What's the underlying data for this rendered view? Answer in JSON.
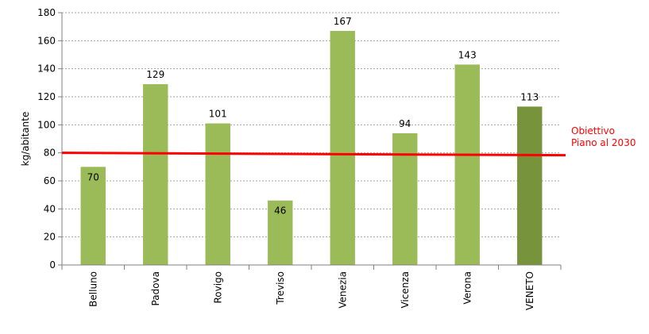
{
  "chart_data": {
    "type": "bar",
    "categories": [
      "Belluno",
      "Padova",
      "Rovigo",
      "Treviso",
      "Venezia",
      "Vicenza",
      "Verona",
      "VENETO"
    ],
    "values": [
      70,
      129,
      101,
      46,
      167,
      94,
      143,
      113
    ],
    "data_labels": [
      "70",
      "129",
      "101",
      "46",
      "167",
      "94",
      "143",
      "113"
    ],
    "title": "",
    "xlabel": "",
    "ylabel": "kg/abitante",
    "ylim": [
      0,
      180
    ],
    "yticks": [
      0,
      20,
      40,
      60,
      80,
      100,
      120,
      140,
      160,
      180
    ],
    "grid": true,
    "legend": "none",
    "colors": {
      "bar": "#9bbb59",
      "highlight_bar": "#77933c",
      "target_line": "#ff0000",
      "grid": "#a6a6a6",
      "axis": "#808080"
    },
    "highlight_category": "VENETO",
    "target": {
      "value": 80,
      "label_lines": [
        "Obiettivo",
        "Piano al 2030"
      ]
    }
  }
}
